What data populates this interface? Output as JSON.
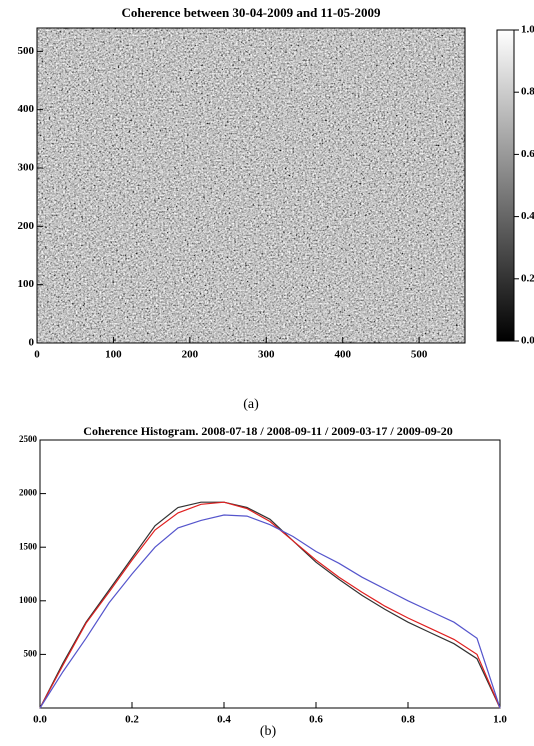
{
  "chart_data": [
    {
      "type": "image",
      "title": "Coherence between 30-04-2009 and 11-05-2009",
      "caption": "(a)",
      "xlim": [
        0,
        560
      ],
      "ylim": [
        0,
        540
      ],
      "xticks": [
        0,
        100,
        200,
        300,
        400,
        500
      ],
      "yticks": [
        0,
        100,
        200,
        300,
        400,
        500
      ],
      "colorbar": {
        "lim": [
          0,
          1
        ],
        "ticks": [
          {
            "value": 0,
            "label": "0.0"
          },
          {
            "value": 0.2,
            "label": "0.2"
          },
          {
            "value": 0.4,
            "label": "0.4"
          },
          {
            "value": 0.6,
            "label": "0.6"
          },
          {
            "value": 0.8,
            "label": "0.8"
          },
          {
            "value": 1,
            "label": "1.0"
          }
        ]
      }
    },
    {
      "type": "line",
      "title": "Coherence Histogram. 2008-07-18 / 2008-09-11 / 2009-03-17 / 2009-09-20",
      "caption": "(b)",
      "xlim": [
        0,
        1
      ],
      "ylim": [
        0,
        2500
      ],
      "xticks": [
        {
          "value": 0,
          "label": "0.0"
        },
        {
          "value": 0.2,
          "label": "0.2"
        },
        {
          "value": 0.4,
          "label": "0.4"
        },
        {
          "value": 0.6,
          "label": "0.6"
        },
        {
          "value": 0.8,
          "label": "0.8"
        },
        {
          "value": 1,
          "label": "1.0"
        }
      ],
      "yticks": [
        500,
        1000,
        1500,
        2000,
        2500
      ],
      "x": [
        0,
        0.05,
        0.1,
        0.15,
        0.2,
        0.25,
        0.3,
        0.35,
        0.4,
        0.45,
        0.5,
        0.55,
        0.6,
        0.65,
        0.7,
        0.75,
        0.8,
        0.85,
        0.9,
        0.95,
        1.0
      ],
      "series": [
        {
          "color": "#333333",
          "values": [
            0,
            420,
            800,
            1100,
            1400,
            1700,
            1870,
            1920,
            1920,
            1870,
            1760,
            1560,
            1360,
            1200,
            1050,
            920,
            800,
            700,
            600,
            460,
            0
          ]
        },
        {
          "color": "#e02020",
          "values": [
            0,
            400,
            790,
            1080,
            1380,
            1660,
            1820,
            1900,
            1920,
            1860,
            1740,
            1560,
            1380,
            1220,
            1080,
            950,
            840,
            740,
            640,
            500,
            0
          ]
        },
        {
          "color": "#5555cc",
          "values": [
            0,
            340,
            650,
            980,
            1250,
            1500,
            1680,
            1750,
            1800,
            1790,
            1710,
            1600,
            1460,
            1350,
            1220,
            1110,
            1000,
            900,
            800,
            650,
            0
          ]
        }
      ]
    }
  ]
}
